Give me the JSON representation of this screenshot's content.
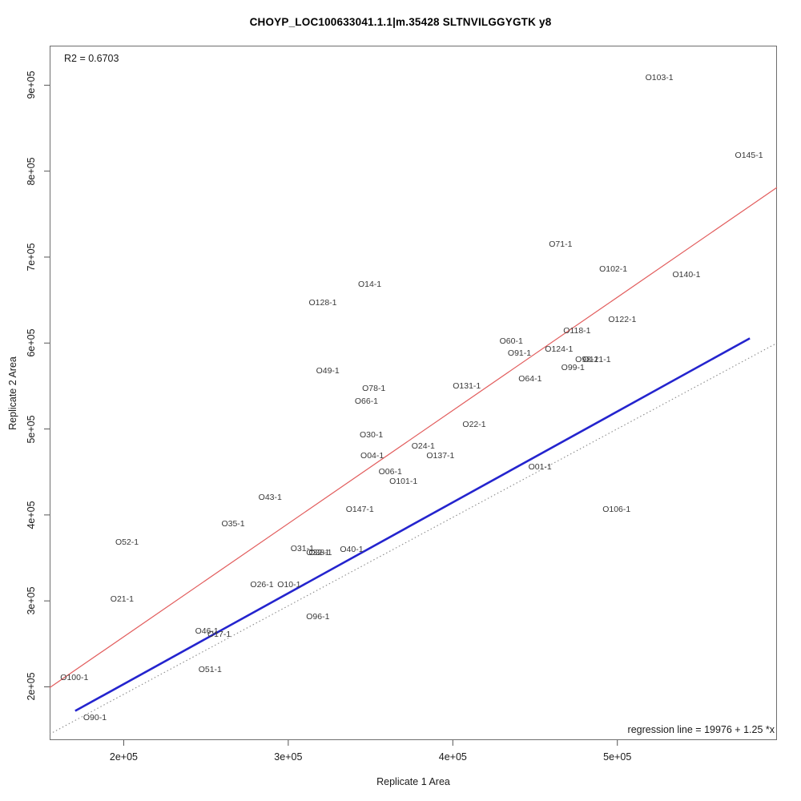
{
  "title": "CHOYP_LOC100633041.1.1|m.35428 SLTNVILGGYGTK y8",
  "annotations": {
    "r2": "R2 = 0.6703",
    "regression": "regression line = 19976 + 1.25 *x"
  },
  "axes": {
    "x": {
      "label": "Replicate 1 Area",
      "range": [
        155000,
        597000
      ],
      "ticks": [
        {
          "value": 200000,
          "label": "2e+05"
        },
        {
          "value": 300000,
          "label": "3e+05"
        },
        {
          "value": 400000,
          "label": "4e+05"
        },
        {
          "value": 500000,
          "label": "5e+05"
        }
      ]
    },
    "y": {
      "label": "Replicate 2 Area",
      "range": [
        138000,
        946000
      ],
      "ticks": [
        {
          "value": 200000,
          "label": "2e+05"
        },
        {
          "value": 300000,
          "label": "3e+05"
        },
        {
          "value": 400000,
          "label": "4e+05"
        },
        {
          "value": 500000,
          "label": "5e+05"
        },
        {
          "value": 600000,
          "label": "6e+05"
        },
        {
          "value": 700000,
          "label": "7e+05"
        },
        {
          "value": 800000,
          "label": "8e+05"
        },
        {
          "value": 900000,
          "label": "9e+05"
        }
      ]
    }
  },
  "chart_data": {
    "type": "scatter",
    "title": "CHOYP_LOC100633041.1.1|m.35428 SLTNVILGGYGTK y8",
    "xlabel": "Replicate 1 Area",
    "ylabel": "Replicate 2 Area",
    "xlim": [
      155000,
      597000
    ],
    "ylim": [
      138000,
      946000
    ],
    "grid": false,
    "marker": "text-label",
    "points": [
      {
        "label": "O103-1",
        "x": 525500,
        "y": 909000
      },
      {
        "label": "O145-1",
        "x": 580000,
        "y": 818000
      },
      {
        "label": "O71-1",
        "x": 465500,
        "y": 715000
      },
      {
        "label": "O102-1",
        "x": 497500,
        "y": 686000
      },
      {
        "label": "O140-1",
        "x": 542000,
        "y": 679000
      },
      {
        "label": "O14-1",
        "x": 349500,
        "y": 668500
      },
      {
        "label": "O128-1",
        "x": 321000,
        "y": 647000
      },
      {
        "label": "O122-1",
        "x": 503000,
        "y": 627000
      },
      {
        "label": "O118-1",
        "x": 475500,
        "y": 614500
      },
      {
        "label": "O60-1",
        "x": 435500,
        "y": 602000
      },
      {
        "label": "O124-1",
        "x": 464500,
        "y": 592500
      },
      {
        "label": "O91-1",
        "x": 440500,
        "y": 588000
      },
      {
        "label": "O98-1",
        "x": 481500,
        "y": 580500
      },
      {
        "label": "O121-1",
        "x": 487500,
        "y": 580500
      },
      {
        "label": "O99-1",
        "x": 473000,
        "y": 571500
      },
      {
        "label": "O64-1",
        "x": 447000,
        "y": 558000
      },
      {
        "label": "O131-1",
        "x": 408500,
        "y": 550000
      },
      {
        "label": "O49-1",
        "x": 324000,
        "y": 568000
      },
      {
        "label": "O78-1",
        "x": 352000,
        "y": 547500
      },
      {
        "label": "O66-1",
        "x": 347500,
        "y": 532000
      },
      {
        "label": "O30-1",
        "x": 350500,
        "y": 493000
      },
      {
        "label": "O22-1",
        "x": 413000,
        "y": 505000
      },
      {
        "label": "O24-1",
        "x": 382000,
        "y": 480000
      },
      {
        "label": "O04-1",
        "x": 351000,
        "y": 469000
      },
      {
        "label": "O137-1",
        "x": 392500,
        "y": 469000
      },
      {
        "label": "O06-1",
        "x": 362000,
        "y": 450000
      },
      {
        "label": "O101-1",
        "x": 370000,
        "y": 439000
      },
      {
        "label": "O01-1",
        "x": 453000,
        "y": 456000
      },
      {
        "label": "O43-1",
        "x": 289000,
        "y": 420500
      },
      {
        "label": "O147-1",
        "x": 343500,
        "y": 406000
      },
      {
        "label": "O106-1",
        "x": 499500,
        "y": 406500
      },
      {
        "label": "O35-1",
        "x": 266500,
        "y": 390000
      },
      {
        "label": "O52-1",
        "x": 202000,
        "y": 368000
      },
      {
        "label": "O31-1",
        "x": 308500,
        "y": 360500
      },
      {
        "label": "O32-1",
        "x": 318000,
        "y": 356500
      },
      {
        "label": "O38-1",
        "x": 319500,
        "y": 356500
      },
      {
        "label": "O40-1",
        "x": 338500,
        "y": 359500
      },
      {
        "label": "O26-1",
        "x": 284000,
        "y": 318500
      },
      {
        "label": "O10-1",
        "x": 300500,
        "y": 318500
      },
      {
        "label": "O21-1",
        "x": 199000,
        "y": 302000
      },
      {
        "label": "O96-1",
        "x": 318000,
        "y": 281500
      },
      {
        "label": "O46-1",
        "x": 250500,
        "y": 264500
      },
      {
        "label": "O17-1",
        "x": 258000,
        "y": 261000
      },
      {
        "label": "O51-1",
        "x": 252500,
        "y": 220000
      },
      {
        "label": "O100-1",
        "x": 170000,
        "y": 211000
      },
      {
        "label": "O90-1",
        "x": 182500,
        "y": 164000
      }
    ],
    "lines": [
      {
        "name": "regression-line",
        "color": "#e25c5c",
        "style": "solid",
        "width": 1.2,
        "x1": 155000,
        "y1": 199000,
        "x2": 597000,
        "y2": 781000
      },
      {
        "name": "blue-fit-line",
        "color": "#2424ce",
        "style": "solid",
        "width": 2.6,
        "x1": 170500,
        "y1": 172000,
        "x2": 580500,
        "y2": 605500
      },
      {
        "name": "dotted-reference-line",
        "color": "#8a8a8a",
        "style": "dotted",
        "width": 1.1,
        "x1": 155000,
        "y1": 145000,
        "x2": 597000,
        "y2": 600000
      }
    ],
    "tick_color": "#555555",
    "border_color": "#6e6e6e"
  }
}
